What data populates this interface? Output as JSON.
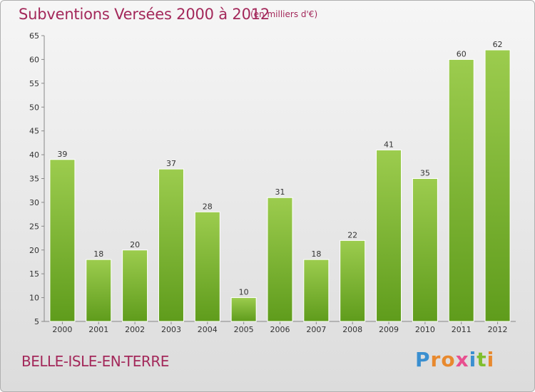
{
  "header": {
    "title": "Subventions Versées 2000 à 2012",
    "subtitle": "(en milliers d'€)"
  },
  "footer": {
    "commune": "BELLE-ISLE-EN-TERRE",
    "logo_letters": [
      "P",
      "r",
      "o",
      "x",
      "i",
      "t",
      "i"
    ],
    "logo_colors": [
      "#3a8fd0",
      "#e8892e",
      "#e8892e",
      "#e84f8f",
      "#3a8fd0",
      "#7fbf2e",
      "#e8892e"
    ]
  },
  "colors": {
    "bar_top": "#9ccc4e",
    "bar_bottom": "#5f9c1c",
    "text": "#a3285a"
  },
  "chart_data": {
    "type": "bar",
    "categories": [
      "2000",
      "2001",
      "2002",
      "2003",
      "2004",
      "2005",
      "2006",
      "2007",
      "2008",
      "2009",
      "2010",
      "2011",
      "2012"
    ],
    "values": [
      39,
      18,
      20,
      37,
      28,
      10,
      31,
      18,
      22,
      41,
      35,
      60,
      62
    ],
    "yticks": [
      5,
      10,
      15,
      20,
      25,
      30,
      35,
      40,
      45,
      50,
      55,
      60,
      65
    ],
    "ylim": [
      5,
      65
    ],
    "grid": false,
    "title": "Subventions Versées 2000 à 2012",
    "subtitle": "(en milliers d'€)",
    "xlabel": "",
    "ylabel": ""
  }
}
